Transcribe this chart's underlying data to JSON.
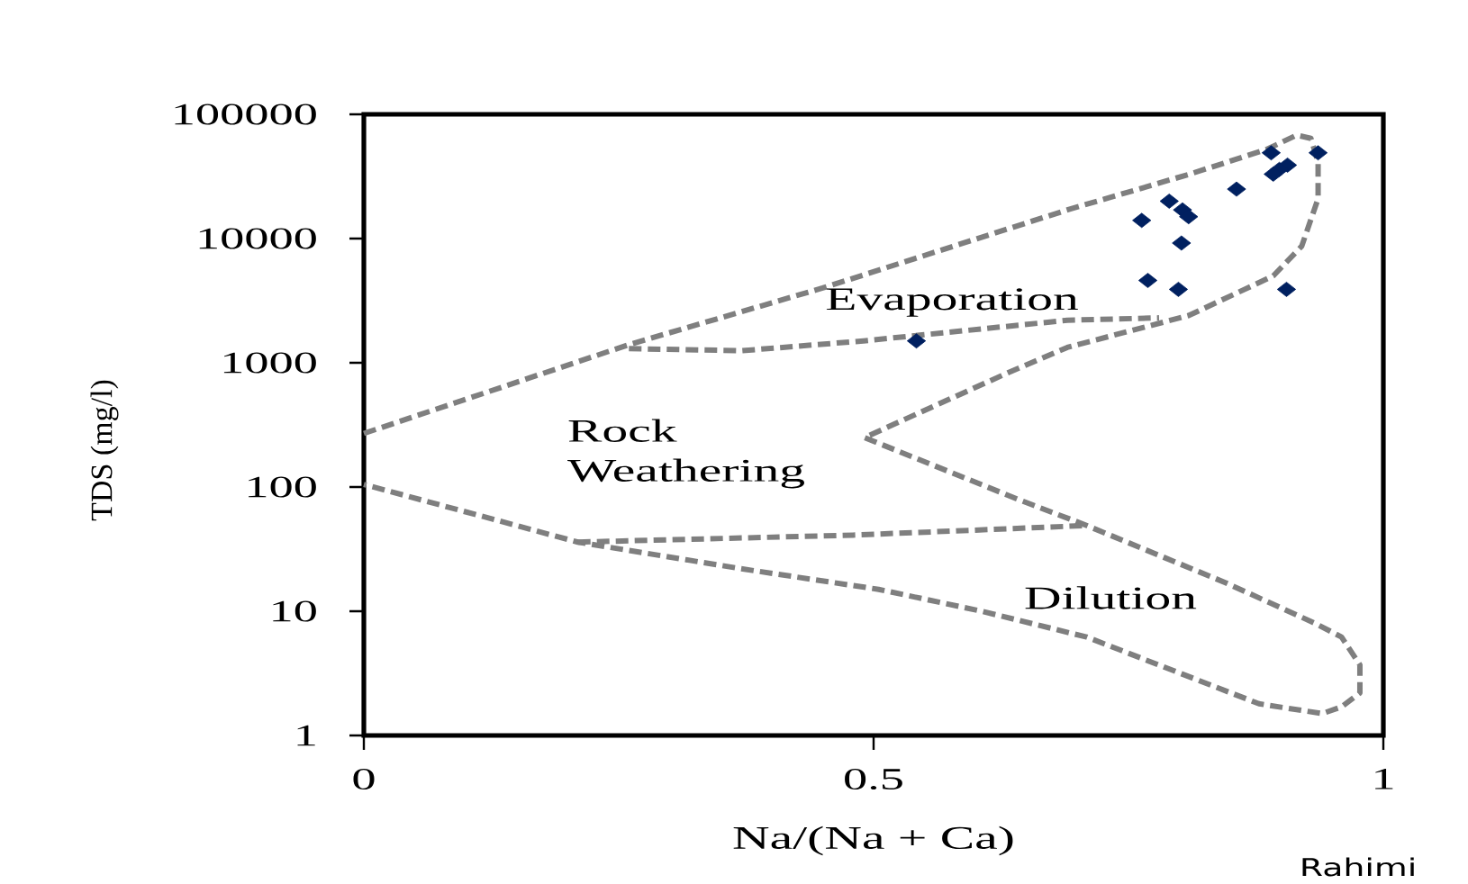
{
  "chart_data": {
    "type": "scatter",
    "xlabel": "Na/(Na + Ca)",
    "ylabel": "TDS (mg/l)",
    "log": "y",
    "xlim": [
      0,
      1
    ],
    "ylim": [
      1,
      100000
    ],
    "xticks": [
      0,
      0.5,
      1
    ],
    "yticks": [
      1,
      10,
      100,
      1000,
      10000,
      100000
    ],
    "annotations": [
      "Evaporation",
      "Rock Weathering",
      "Dilution",
      "Rahimi"
    ],
    "series": [
      {
        "color": "#002060",
        "marker": "diamond",
        "x": [
          0.89,
          0.936,
          0.906,
          0.898,
          0.892,
          0.856,
          0.79,
          0.803,
          0.809,
          0.763,
          0.802,
          0.769,
          0.799,
          0.905,
          0.542
        ],
        "values": [
          49000,
          49000,
          39000,
          36000,
          33000,
          25000,
          20000,
          17000,
          15000,
          14000,
          9200,
          4600,
          3900,
          3900,
          1500
        ]
      },
      {
        "type": "line",
        "color": "#7f7f7f",
        "marker": "none",
        "line_style": "dashed",
        "x": [
          0,
          0.26,
          0.45,
          0.69,
          0.81,
          0.885,
          0.915,
          0.929,
          0.936,
          0.936,
          0.92,
          0.892,
          0.809,
          0.69,
          0.633,
          0.491,
          0.641,
          0.709,
          0.845,
          0.933,
          0.959,
          0.977,
          0.977,
          0.959,
          0.94,
          0.878,
          0.709,
          0.606,
          0.505,
          0.37,
          0.21,
          0
        ],
        "values": [
          270,
          1400,
          4000,
          17000,
          33000,
          52000,
          68000,
          64000,
          41000,
          21000,
          8700,
          5000,
          2400,
          1330,
          840,
          250,
          80,
          49,
          17,
          8,
          6.2,
          3.7,
          2.2,
          1.7,
          1.5,
          1.8,
          6.2,
          10,
          15,
          22,
          36,
          105
        ]
      },
      {
        "type": "line",
        "color": "#7f7f7f",
        "marker": "none",
        "line_style": "dashed",
        "x": [
          0.26,
          0.37,
          0.49,
          0.69,
          0.78
        ],
        "values": [
          1300,
          1250,
          1500,
          2200,
          2300
        ]
      },
      {
        "type": "line",
        "color": "#7f7f7f",
        "marker": "none",
        "line_style": "dashed",
        "x": [
          0.21,
          0.48,
          0.71
        ],
        "values": [
          36,
          41,
          49
        ]
      }
    ]
  }
}
